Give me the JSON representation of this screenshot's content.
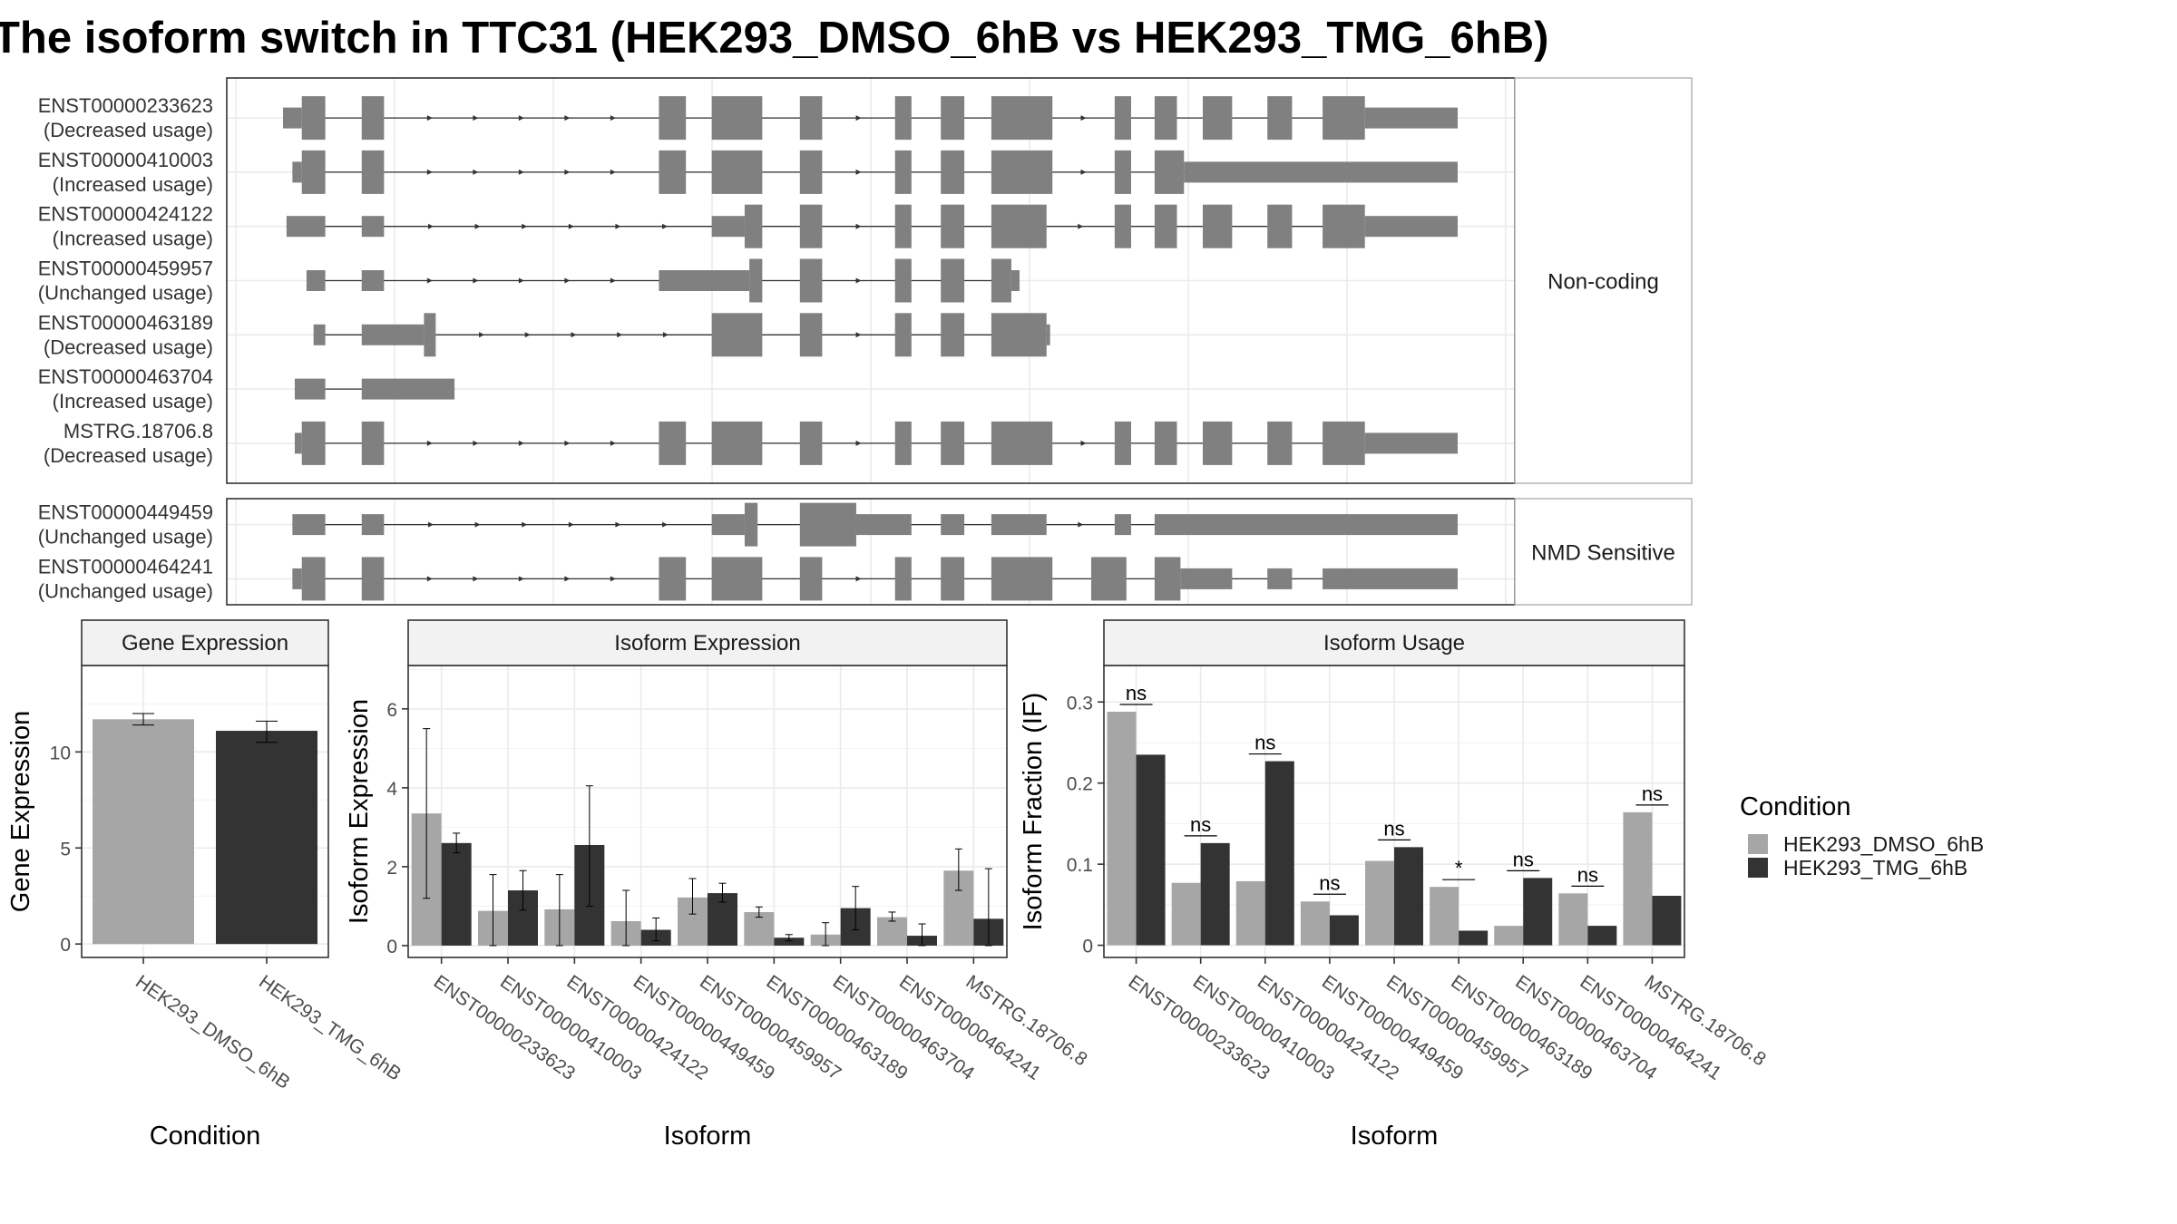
{
  "title": "The isoform switch in TTC31 (HEK293_DMSO_6hB vs HEK293_TMG_6hB)",
  "colors": {
    "DMSO": "#a6a6a6",
    "TMG": "#333333",
    "exon": "#808080",
    "strip": "#f2f2f2",
    "grid": "#ebebeb"
  },
  "legend": {
    "title": "Condition",
    "items": [
      {
        "label": "HEK293_DMSO_6hB",
        "color": "#a6a6a6"
      },
      {
        "label": "HEK293_TMG_6hB",
        "color": "#333333"
      }
    ]
  },
  "chart_data": [
    {
      "type": "transcript-structure",
      "genome_range": [
        0,
        1000
      ],
      "panels": [
        {
          "strip": "Non-coding",
          "transcripts": [
            {
              "id": "ENST00000233623",
              "usage": "(Decreased usage)",
              "exons": [
                [
                  0,
                  16,
                  "s"
                ],
                [
                  16,
                  36,
                  "t"
                ],
                [
                  67,
                  86,
                  "t"
                ],
                [
                  320,
                  343,
                  "t"
                ],
                [
                  365,
                  408,
                  "t"
                ],
                [
                  440,
                  459,
                  "t"
                ],
                [
                  521,
                  535,
                  "t"
                ],
                [
                  560,
                  580,
                  "t"
                ],
                [
                  603,
                  655,
                  "t"
                ],
                [
                  708,
                  722,
                  "t"
                ],
                [
                  742,
                  761,
                  "t"
                ],
                [
                  783,
                  808,
                  "t"
                ],
                [
                  838,
                  859,
                  "t"
                ],
                [
                  885,
                  921,
                  "t"
                ],
                [
                  921,
                  1000,
                  "s"
                ]
              ]
            },
            {
              "id": "ENST00000410003",
              "usage": "(Increased usage)",
              "exons": [
                [
                  8,
                  16,
                  "s"
                ],
                [
                  16,
                  36,
                  "t"
                ],
                [
                  67,
                  86,
                  "t"
                ],
                [
                  320,
                  343,
                  "t"
                ],
                [
                  365,
                  408,
                  "t"
                ],
                [
                  440,
                  459,
                  "t"
                ],
                [
                  521,
                  535,
                  "t"
                ],
                [
                  560,
                  580,
                  "t"
                ],
                [
                  603,
                  655,
                  "t"
                ],
                [
                  708,
                  722,
                  "t"
                ],
                [
                  742,
                  767,
                  "t"
                ],
                [
                  767,
                  1000,
                  "s"
                ]
              ]
            },
            {
              "id": "ENST00000424122",
              "usage": "(Increased usage)",
              "exons": [
                [
                  3,
                  36,
                  "s"
                ],
                [
                  67,
                  86,
                  "s"
                ],
                [
                  365,
                  393,
                  "s"
                ],
                [
                  393,
                  408,
                  "t"
                ],
                [
                  440,
                  459,
                  "t"
                ],
                [
                  521,
                  535,
                  "t"
                ],
                [
                  560,
                  580,
                  "t"
                ],
                [
                  603,
                  650,
                  "t"
                ],
                [
                  708,
                  722,
                  "t"
                ],
                [
                  742,
                  761,
                  "t"
                ],
                [
                  783,
                  808,
                  "t"
                ],
                [
                  838,
                  859,
                  "t"
                ],
                [
                  885,
                  921,
                  "t"
                ],
                [
                  921,
                  1000,
                  "s"
                ]
              ]
            },
            {
              "id": "ENST00000459957",
              "usage": "(Unchanged usage)",
              "exons": [
                [
                  20,
                  36,
                  "s"
                ],
                [
                  67,
                  86,
                  "s"
                ],
                [
                  320,
                  397,
                  "s"
                ],
                [
                  397,
                  408,
                  "t"
                ],
                [
                  440,
                  459,
                  "t"
                ],
                [
                  521,
                  535,
                  "t"
                ],
                [
                  560,
                  580,
                  "t"
                ],
                [
                  603,
                  620,
                  "t"
                ],
                [
                  620,
                  627,
                  "s"
                ]
              ]
            },
            {
              "id": "ENST00000463189",
              "usage": "(Decreased usage)",
              "exons": [
                [
                  26,
                  36,
                  "s"
                ],
                [
                  67,
                  120,
                  "s"
                ],
                [
                  120,
                  130,
                  "t"
                ],
                [
                  365,
                  408,
                  "t"
                ],
                [
                  440,
                  459,
                  "t"
                ],
                [
                  521,
                  535,
                  "t"
                ],
                [
                  560,
                  580,
                  "t"
                ],
                [
                  603,
                  650,
                  "t"
                ],
                [
                  650,
                  653,
                  "s"
                ]
              ]
            },
            {
              "id": "ENST00000463704",
              "usage": "(Increased usage)",
              "exons": [
                [
                  10,
                  36,
                  "s"
                ],
                [
                  67,
                  146,
                  "s"
                ]
              ]
            },
            {
              "id": "MSTRG.18706.8",
              "usage": "(Decreased usage)",
              "exons": [
                [
                  10,
                  16,
                  "s"
                ],
                [
                  16,
                  36,
                  "t"
                ],
                [
                  67,
                  86,
                  "t"
                ],
                [
                  320,
                  343,
                  "t"
                ],
                [
                  365,
                  408,
                  "t"
                ],
                [
                  440,
                  459,
                  "t"
                ],
                [
                  521,
                  535,
                  "t"
                ],
                [
                  560,
                  580,
                  "t"
                ],
                [
                  603,
                  655,
                  "t"
                ],
                [
                  708,
                  722,
                  "t"
                ],
                [
                  742,
                  761,
                  "t"
                ],
                [
                  783,
                  808,
                  "t"
                ],
                [
                  838,
                  859,
                  "t"
                ],
                [
                  885,
                  921,
                  "t"
                ],
                [
                  921,
                  1000,
                  "s"
                ]
              ]
            }
          ]
        },
        {
          "strip": "NMD Sensitive",
          "transcripts": [
            {
              "id": "ENST00000449459",
              "usage": "(Unchanged usage)",
              "exons": [
                [
                  8,
                  36,
                  "s"
                ],
                [
                  67,
                  86,
                  "s"
                ],
                [
                  365,
                  393,
                  "s"
                ],
                [
                  393,
                  404,
                  "t"
                ],
                [
                  440,
                  488,
                  "t"
                ],
                [
                  488,
                  535,
                  "s"
                ],
                [
                  560,
                  580,
                  "s"
                ],
                [
                  603,
                  650,
                  "s"
                ],
                [
                  708,
                  722,
                  "s"
                ],
                [
                  742,
                  1000,
                  "s"
                ]
              ]
            },
            {
              "id": "ENST00000464241",
              "usage": "(Unchanged usage)",
              "exons": [
                [
                  8,
                  16,
                  "s"
                ],
                [
                  16,
                  36,
                  "t"
                ],
                [
                  67,
                  86,
                  "t"
                ],
                [
                  320,
                  343,
                  "t"
                ],
                [
                  365,
                  408,
                  "t"
                ],
                [
                  440,
                  459,
                  "t"
                ],
                [
                  521,
                  535,
                  "t"
                ],
                [
                  560,
                  580,
                  "t"
                ],
                [
                  603,
                  655,
                  "t"
                ],
                [
                  688,
                  718,
                  "t"
                ],
                [
                  742,
                  764,
                  "t"
                ],
                [
                  764,
                  808,
                  "s"
                ],
                [
                  838,
                  859,
                  "s"
                ],
                [
                  885,
                  1000,
                  "s"
                ]
              ]
            }
          ]
        }
      ]
    },
    {
      "type": "bar",
      "title": "Gene Expression",
      "xlabel": "Condition",
      "ylabel": "Gene Expression",
      "ylim": [
        -0.7,
        14.5
      ],
      "yticks": [
        0,
        5,
        10
      ],
      "grid": true,
      "categories": [
        "HEK293_DMSO_6hB",
        "HEK293_TMG_6hB"
      ],
      "values": [
        11.7,
        11.1
      ],
      "errors": [
        [
          11.4,
          12.0
        ],
        [
          10.5,
          11.6
        ]
      ]
    },
    {
      "type": "bar",
      "title": "Isoform Expression",
      "xlabel": "Isoform",
      "ylabel": "Isoform Expression",
      "ylim": [
        -0.3,
        7.1
      ],
      "yticks": [
        0,
        2,
        4,
        6
      ],
      "grid": true,
      "categories": [
        "ENST00000233623",
        "ENST00000410003",
        "ENST00000424122",
        "ENST00000449459",
        "ENST00000459957",
        "ENST00000463189",
        "ENST00000463704",
        "ENST00000464241",
        "MSTRG.18706.8"
      ],
      "series": [
        {
          "name": "HEK293_DMSO_6hB",
          "values": [
            3.35,
            0.88,
            0.92,
            0.62,
            1.22,
            0.85,
            0.28,
            0.72,
            1.9
          ],
          "errors": [
            [
              1.2,
              5.5
            ],
            [
              0.0,
              1.8
            ],
            [
              0.0,
              1.8
            ],
            [
              0.0,
              1.4
            ],
            [
              0.8,
              1.7
            ],
            [
              0.72,
              0.98
            ],
            [
              0.0,
              0.58
            ],
            [
              0.62,
              0.85
            ],
            [
              1.4,
              2.45
            ]
          ]
        },
        {
          "name": "HEK293_TMG_6hB",
          "values": [
            2.6,
            1.4,
            2.55,
            0.4,
            1.33,
            0.2,
            0.95,
            0.25,
            0.68
          ],
          "errors": [
            [
              2.35,
              2.85
            ],
            [
              0.9,
              1.9
            ],
            [
              1.0,
              4.05
            ],
            [
              0.12,
              0.7
            ],
            [
              1.1,
              1.58
            ],
            [
              0.12,
              0.28
            ],
            [
              0.4,
              1.5
            ],
            [
              0.0,
              0.55
            ],
            [
              0.0,
              1.95
            ]
          ]
        }
      ]
    },
    {
      "type": "bar",
      "title": "Isoform Usage",
      "xlabel": "Isoform",
      "ylabel": "Isoform Fraction (IF)",
      "ylim": [
        -0.015,
        0.345
      ],
      "yticks": [
        0.0,
        0.1,
        0.2,
        0.3
      ],
      "grid": true,
      "categories": [
        "ENST00000233623",
        "ENST00000410003",
        "ENST00000424122",
        "ENST00000449459",
        "ENST00000459957",
        "ENST00000463189",
        "ENST00000463704",
        "ENST00000464241",
        "MSTRG.18706.8"
      ],
      "series": [
        {
          "name": "HEK293_DMSO_6hB",
          "values": [
            0.288,
            0.077,
            0.079,
            0.054,
            0.104,
            0.072,
            0.024,
            0.064,
            0.164
          ]
        },
        {
          "name": "HEK293_TMG_6hB",
          "values": [
            0.235,
            0.126,
            0.227,
            0.037,
            0.121,
            0.018,
            0.083,
            0.024,
            0.061
          ]
        }
      ],
      "significance": [
        "ns",
        "ns",
        "ns",
        "ns",
        "ns",
        "*",
        "ns",
        "ns",
        "ns"
      ]
    }
  ]
}
